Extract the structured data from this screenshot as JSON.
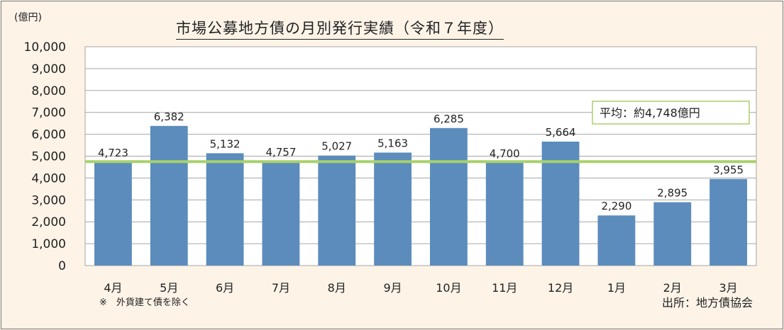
{
  "unit": "(億円)",
  "title": "市場公募地方債の月別発行実績（令和７年度）",
  "note": "※　外貨建て債を除く",
  "source": "出所：地方債協会",
  "colors": {
    "bar": "#5b8cbc",
    "average_line": "#a8d16b",
    "average_box_border": "#a8d16b",
    "grid": "#a6a6a6",
    "plot_bg": "#ffffff"
  },
  "chart_data": {
    "type": "bar",
    "title": "市場公募地方債の月別発行実績（令和７年度）",
    "ylabel": "(億円)",
    "xlabel": "",
    "ylim": [
      0,
      10000
    ],
    "yticks": [
      0,
      1000,
      2000,
      3000,
      4000,
      5000,
      6000,
      7000,
      8000,
      9000,
      10000
    ],
    "ytick_labels": [
      "0",
      "1,000",
      "2,000",
      "3,000",
      "4,000",
      "5,000",
      "6,000",
      "7,000",
      "8,000",
      "9,000",
      "10,000"
    ],
    "categories": [
      "4月",
      "5月",
      "6月",
      "7月",
      "8月",
      "9月",
      "10月",
      "11月",
      "12月",
      "1月",
      "2月",
      "3月"
    ],
    "values": [
      4723,
      6382,
      5132,
      4757,
      5027,
      5163,
      6285,
      4700,
      5664,
      2290,
      2895,
      3955
    ],
    "value_labels": [
      "4,723",
      "6,382",
      "5,132",
      "4,757",
      "5,027",
      "5,163",
      "6,285",
      "4,700",
      "5,664",
      "2,290",
      "2,895",
      "3,955"
    ],
    "grid": true,
    "average": 4748,
    "average_label": "平均：約4,748億円"
  }
}
